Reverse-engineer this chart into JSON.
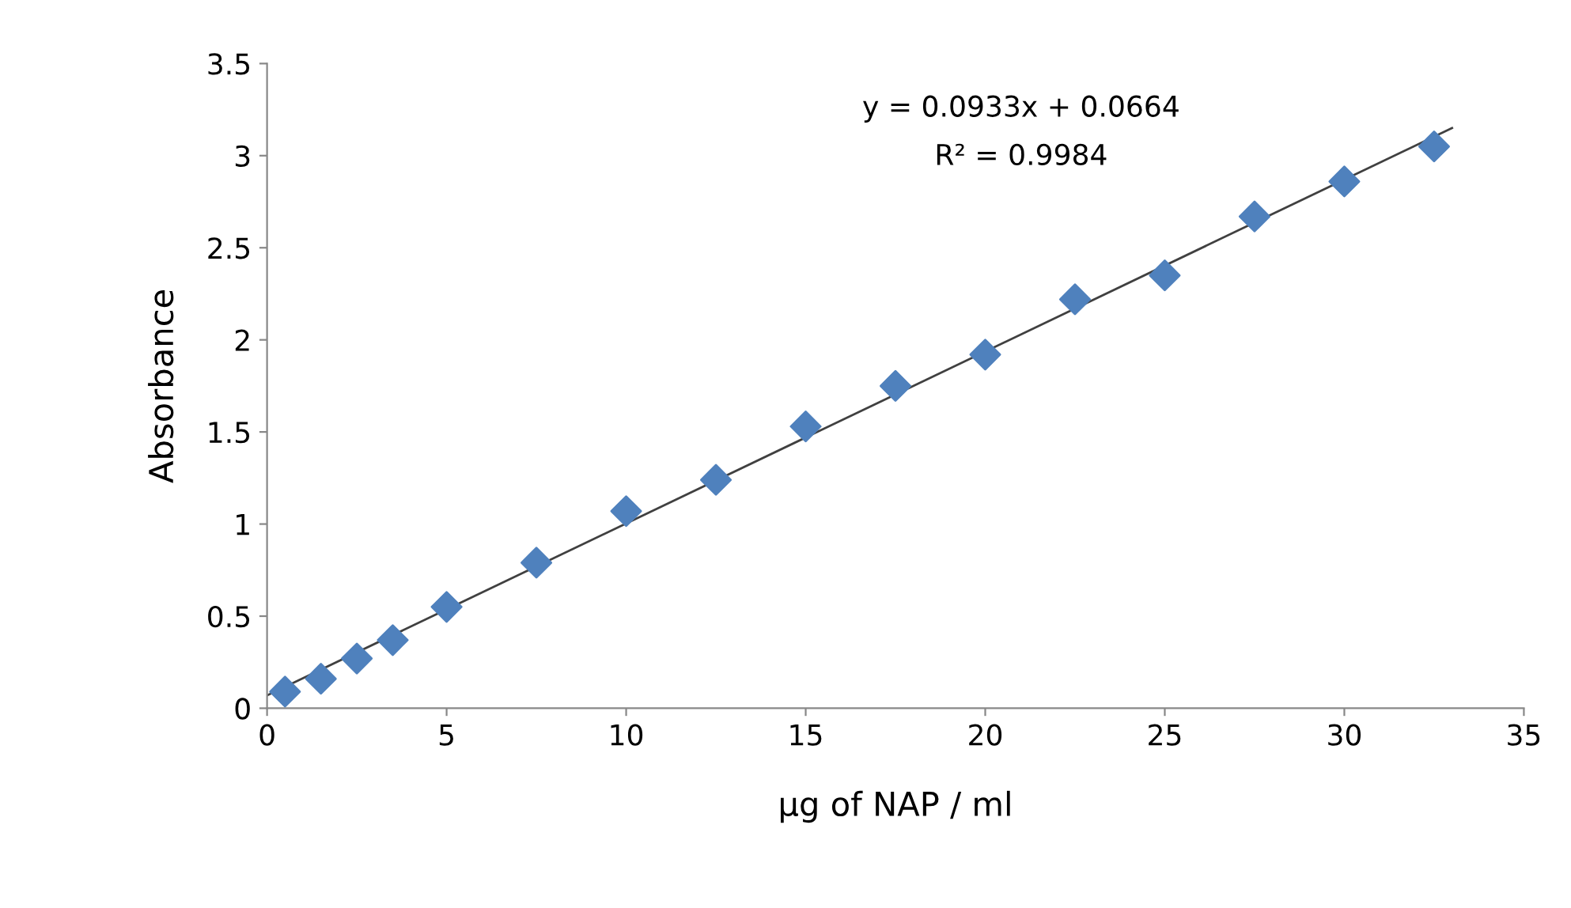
{
  "chart_data": {
    "type": "scatter",
    "xlabel": "µg of NAP / ml",
    "ylabel": "Absorbance",
    "xlim": [
      0,
      35
    ],
    "ylim": [
      0,
      3.5
    ],
    "xticks": [
      0,
      5,
      10,
      15,
      20,
      25,
      30,
      35
    ],
    "yticks": [
      0,
      0.5,
      1,
      1.5,
      2,
      2.5,
      3,
      3.5
    ],
    "grid": false,
    "legend": false,
    "series": [
      {
        "marker": "diamond",
        "color": "#4f81bd",
        "x": [
          0.5,
          1.5,
          2.5,
          3.5,
          5,
          7.5,
          10,
          12.5,
          15,
          17.5,
          20,
          22.5,
          25,
          27.5,
          30,
          32.5
        ],
        "values": [
          0.09,
          0.16,
          0.27,
          0.37,
          0.55,
          0.79,
          1.07,
          1.24,
          1.53,
          1.75,
          1.92,
          2.22,
          2.35,
          2.67,
          2.86,
          3.05
        ]
      },
      {
        "type": "line",
        "marker": "none",
        "line_style": "solid",
        "color": "#404040",
        "x": [
          0,
          33
        ],
        "values": [
          0.07,
          3.15
        ]
      }
    ],
    "annotations": [
      "y = 0.0933x + 0.0664",
      "R² = 0.9984"
    ]
  }
}
